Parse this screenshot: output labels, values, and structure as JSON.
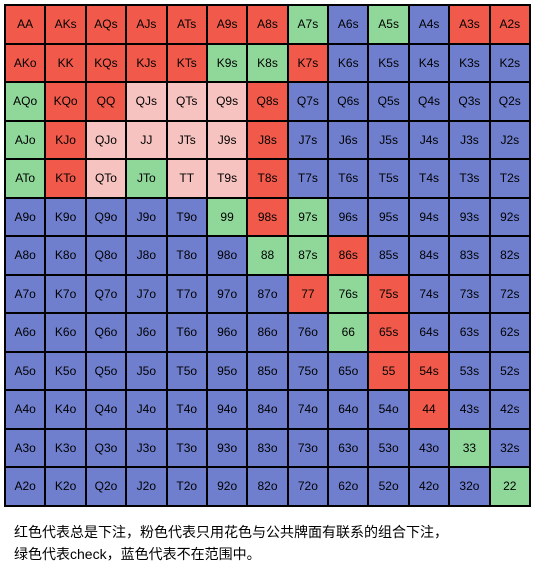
{
  "chart": {
    "type": "heatmap",
    "rows": 13,
    "cols": 13,
    "ranks": [
      "A",
      "K",
      "Q",
      "J",
      "T",
      "9",
      "8",
      "7",
      "6",
      "5",
      "4",
      "3",
      "2"
    ],
    "colors": {
      "red": "#f15a4a",
      "pink": "#f7c3c0",
      "green": "#8fd89a",
      "blue": "#6f7fce",
      "border": "#000000",
      "background": "#ffffff",
      "text": "#000000"
    },
    "cell_font_size": 12,
    "legend_font_size": 14,
    "cells": [
      [
        {
          "l": "AA",
          "c": "red"
        },
        {
          "l": "AKs",
          "c": "red"
        },
        {
          "l": "AQs",
          "c": "red"
        },
        {
          "l": "AJs",
          "c": "red"
        },
        {
          "l": "ATs",
          "c": "red"
        },
        {
          "l": "A9s",
          "c": "red"
        },
        {
          "l": "A8s",
          "c": "red"
        },
        {
          "l": "A7s",
          "c": "green"
        },
        {
          "l": "A6s",
          "c": "blue"
        },
        {
          "l": "A5s",
          "c": "green"
        },
        {
          "l": "A4s",
          "c": "blue"
        },
        {
          "l": "A3s",
          "c": "red"
        },
        {
          "l": "A2s",
          "c": "red"
        }
      ],
      [
        {
          "l": "AKo",
          "c": "red"
        },
        {
          "l": "KK",
          "c": "red"
        },
        {
          "l": "KQs",
          "c": "red"
        },
        {
          "l": "KJs",
          "c": "red"
        },
        {
          "l": "KTs",
          "c": "red"
        },
        {
          "l": "K9s",
          "c": "green"
        },
        {
          "l": "K8s",
          "c": "green"
        },
        {
          "l": "K7s",
          "c": "red"
        },
        {
          "l": "K6s",
          "c": "blue"
        },
        {
          "l": "K5s",
          "c": "blue"
        },
        {
          "l": "K4s",
          "c": "blue"
        },
        {
          "l": "K3s",
          "c": "blue"
        },
        {
          "l": "K2s",
          "c": "blue"
        }
      ],
      [
        {
          "l": "AQo",
          "c": "green"
        },
        {
          "l": "KQo",
          "c": "red"
        },
        {
          "l": "QQ",
          "c": "red"
        },
        {
          "l": "QJs",
          "c": "pink"
        },
        {
          "l": "QTs",
          "c": "pink"
        },
        {
          "l": "Q9s",
          "c": "pink"
        },
        {
          "l": "Q8s",
          "c": "red"
        },
        {
          "l": "Q7s",
          "c": "blue"
        },
        {
          "l": "Q6s",
          "c": "blue"
        },
        {
          "l": "Q5s",
          "c": "blue"
        },
        {
          "l": "Q4s",
          "c": "blue"
        },
        {
          "l": "Q3s",
          "c": "blue"
        },
        {
          "l": "Q2s",
          "c": "blue"
        }
      ],
      [
        {
          "l": "AJo",
          "c": "green"
        },
        {
          "l": "KJo",
          "c": "red"
        },
        {
          "l": "QJo",
          "c": "pink"
        },
        {
          "l": "JJ",
          "c": "pink"
        },
        {
          "l": "JTs",
          "c": "pink"
        },
        {
          "l": "J9s",
          "c": "pink"
        },
        {
          "l": "J8s",
          "c": "red"
        },
        {
          "l": "J7s",
          "c": "blue"
        },
        {
          "l": "J6s",
          "c": "blue"
        },
        {
          "l": "J5s",
          "c": "blue"
        },
        {
          "l": "J4s",
          "c": "blue"
        },
        {
          "l": "J3s",
          "c": "blue"
        },
        {
          "l": "J2s",
          "c": "blue"
        }
      ],
      [
        {
          "l": "ATo",
          "c": "green"
        },
        {
          "l": "KTo",
          "c": "red"
        },
        {
          "l": "QTo",
          "c": "pink"
        },
        {
          "l": "JTo",
          "c": "green"
        },
        {
          "l": "TT",
          "c": "pink"
        },
        {
          "l": "T9s",
          "c": "pink"
        },
        {
          "l": "T8s",
          "c": "red"
        },
        {
          "l": "T7s",
          "c": "blue"
        },
        {
          "l": "T6s",
          "c": "blue"
        },
        {
          "l": "T5s",
          "c": "blue"
        },
        {
          "l": "T4s",
          "c": "blue"
        },
        {
          "l": "T3s",
          "c": "blue"
        },
        {
          "l": "T2s",
          "c": "blue"
        }
      ],
      [
        {
          "l": "A9o",
          "c": "blue"
        },
        {
          "l": "K9o",
          "c": "blue"
        },
        {
          "l": "Q9o",
          "c": "blue"
        },
        {
          "l": "J9o",
          "c": "blue"
        },
        {
          "l": "T9o",
          "c": "blue"
        },
        {
          "l": "99",
          "c": "green"
        },
        {
          "l": "98s",
          "c": "red"
        },
        {
          "l": "97s",
          "c": "green"
        },
        {
          "l": "96s",
          "c": "blue"
        },
        {
          "l": "95s",
          "c": "blue"
        },
        {
          "l": "94s",
          "c": "blue"
        },
        {
          "l": "93s",
          "c": "blue"
        },
        {
          "l": "92s",
          "c": "blue"
        }
      ],
      [
        {
          "l": "A8o",
          "c": "blue"
        },
        {
          "l": "K8o",
          "c": "blue"
        },
        {
          "l": "Q8o",
          "c": "blue"
        },
        {
          "l": "J8o",
          "c": "blue"
        },
        {
          "l": "T8o",
          "c": "blue"
        },
        {
          "l": "98o",
          "c": "blue"
        },
        {
          "l": "88",
          "c": "green"
        },
        {
          "l": "87s",
          "c": "green"
        },
        {
          "l": "86s",
          "c": "red"
        },
        {
          "l": "85s",
          "c": "blue"
        },
        {
          "l": "84s",
          "c": "blue"
        },
        {
          "l": "83s",
          "c": "blue"
        },
        {
          "l": "82s",
          "c": "blue"
        }
      ],
      [
        {
          "l": "A7o",
          "c": "blue"
        },
        {
          "l": "K7o",
          "c": "blue"
        },
        {
          "l": "Q7o",
          "c": "blue"
        },
        {
          "l": "J7o",
          "c": "blue"
        },
        {
          "l": "T7o",
          "c": "blue"
        },
        {
          "l": "97o",
          "c": "blue"
        },
        {
          "l": "87o",
          "c": "blue"
        },
        {
          "l": "77",
          "c": "red"
        },
        {
          "l": "76s",
          "c": "green"
        },
        {
          "l": "75s",
          "c": "red"
        },
        {
          "l": "74s",
          "c": "blue"
        },
        {
          "l": "73s",
          "c": "blue"
        },
        {
          "l": "72s",
          "c": "blue"
        }
      ],
      [
        {
          "l": "A6o",
          "c": "blue"
        },
        {
          "l": "K6o",
          "c": "blue"
        },
        {
          "l": "Q6o",
          "c": "blue"
        },
        {
          "l": "J6o",
          "c": "blue"
        },
        {
          "l": "T6o",
          "c": "blue"
        },
        {
          "l": "96o",
          "c": "blue"
        },
        {
          "l": "86o",
          "c": "blue"
        },
        {
          "l": "76o",
          "c": "blue"
        },
        {
          "l": "66",
          "c": "green"
        },
        {
          "l": "65s",
          "c": "red"
        },
        {
          "l": "64s",
          "c": "blue"
        },
        {
          "l": "63s",
          "c": "blue"
        },
        {
          "l": "62s",
          "c": "blue"
        }
      ],
      [
        {
          "l": "A5o",
          "c": "blue"
        },
        {
          "l": "K5o",
          "c": "blue"
        },
        {
          "l": "Q5o",
          "c": "blue"
        },
        {
          "l": "J5o",
          "c": "blue"
        },
        {
          "l": "T5o",
          "c": "blue"
        },
        {
          "l": "95o",
          "c": "blue"
        },
        {
          "l": "85o",
          "c": "blue"
        },
        {
          "l": "75o",
          "c": "blue"
        },
        {
          "l": "65o",
          "c": "blue"
        },
        {
          "l": "55",
          "c": "red"
        },
        {
          "l": "54s",
          "c": "red"
        },
        {
          "l": "53s",
          "c": "blue"
        },
        {
          "l": "52s",
          "c": "blue"
        }
      ],
      [
        {
          "l": "A4o",
          "c": "blue"
        },
        {
          "l": "K4o",
          "c": "blue"
        },
        {
          "l": "Q4o",
          "c": "blue"
        },
        {
          "l": "J4o",
          "c": "blue"
        },
        {
          "l": "T4o",
          "c": "blue"
        },
        {
          "l": "94o",
          "c": "blue"
        },
        {
          "l": "84o",
          "c": "blue"
        },
        {
          "l": "74o",
          "c": "blue"
        },
        {
          "l": "64o",
          "c": "blue"
        },
        {
          "l": "54o",
          "c": "blue"
        },
        {
          "l": "44",
          "c": "red"
        },
        {
          "l": "43s",
          "c": "blue"
        },
        {
          "l": "42s",
          "c": "blue"
        }
      ],
      [
        {
          "l": "A3o",
          "c": "blue"
        },
        {
          "l": "K3o",
          "c": "blue"
        },
        {
          "l": "Q3o",
          "c": "blue"
        },
        {
          "l": "J3o",
          "c": "blue"
        },
        {
          "l": "T3o",
          "c": "blue"
        },
        {
          "l": "93o",
          "c": "blue"
        },
        {
          "l": "83o",
          "c": "blue"
        },
        {
          "l": "73o",
          "c": "blue"
        },
        {
          "l": "63o",
          "c": "blue"
        },
        {
          "l": "53o",
          "c": "blue"
        },
        {
          "l": "43o",
          "c": "blue"
        },
        {
          "l": "33",
          "c": "green"
        },
        {
          "l": "32s",
          "c": "blue"
        }
      ],
      [
        {
          "l": "A2o",
          "c": "blue"
        },
        {
          "l": "K2o",
          "c": "blue"
        },
        {
          "l": "Q2o",
          "c": "blue"
        },
        {
          "l": "J2o",
          "c": "blue"
        },
        {
          "l": "T2o",
          "c": "blue"
        },
        {
          "l": "92o",
          "c": "blue"
        },
        {
          "l": "82o",
          "c": "blue"
        },
        {
          "l": "72o",
          "c": "blue"
        },
        {
          "l": "62o",
          "c": "blue"
        },
        {
          "l": "52o",
          "c": "blue"
        },
        {
          "l": "42o",
          "c": "blue"
        },
        {
          "l": "32o",
          "c": "blue"
        },
        {
          "l": "22",
          "c": "green"
        }
      ]
    ]
  },
  "legend": {
    "line1": "红色代表总是下注，粉色代表只用花色与公共牌面有联系的组合下注，",
    "line2": "绿色代表check，蓝色代表不在范围中。"
  }
}
